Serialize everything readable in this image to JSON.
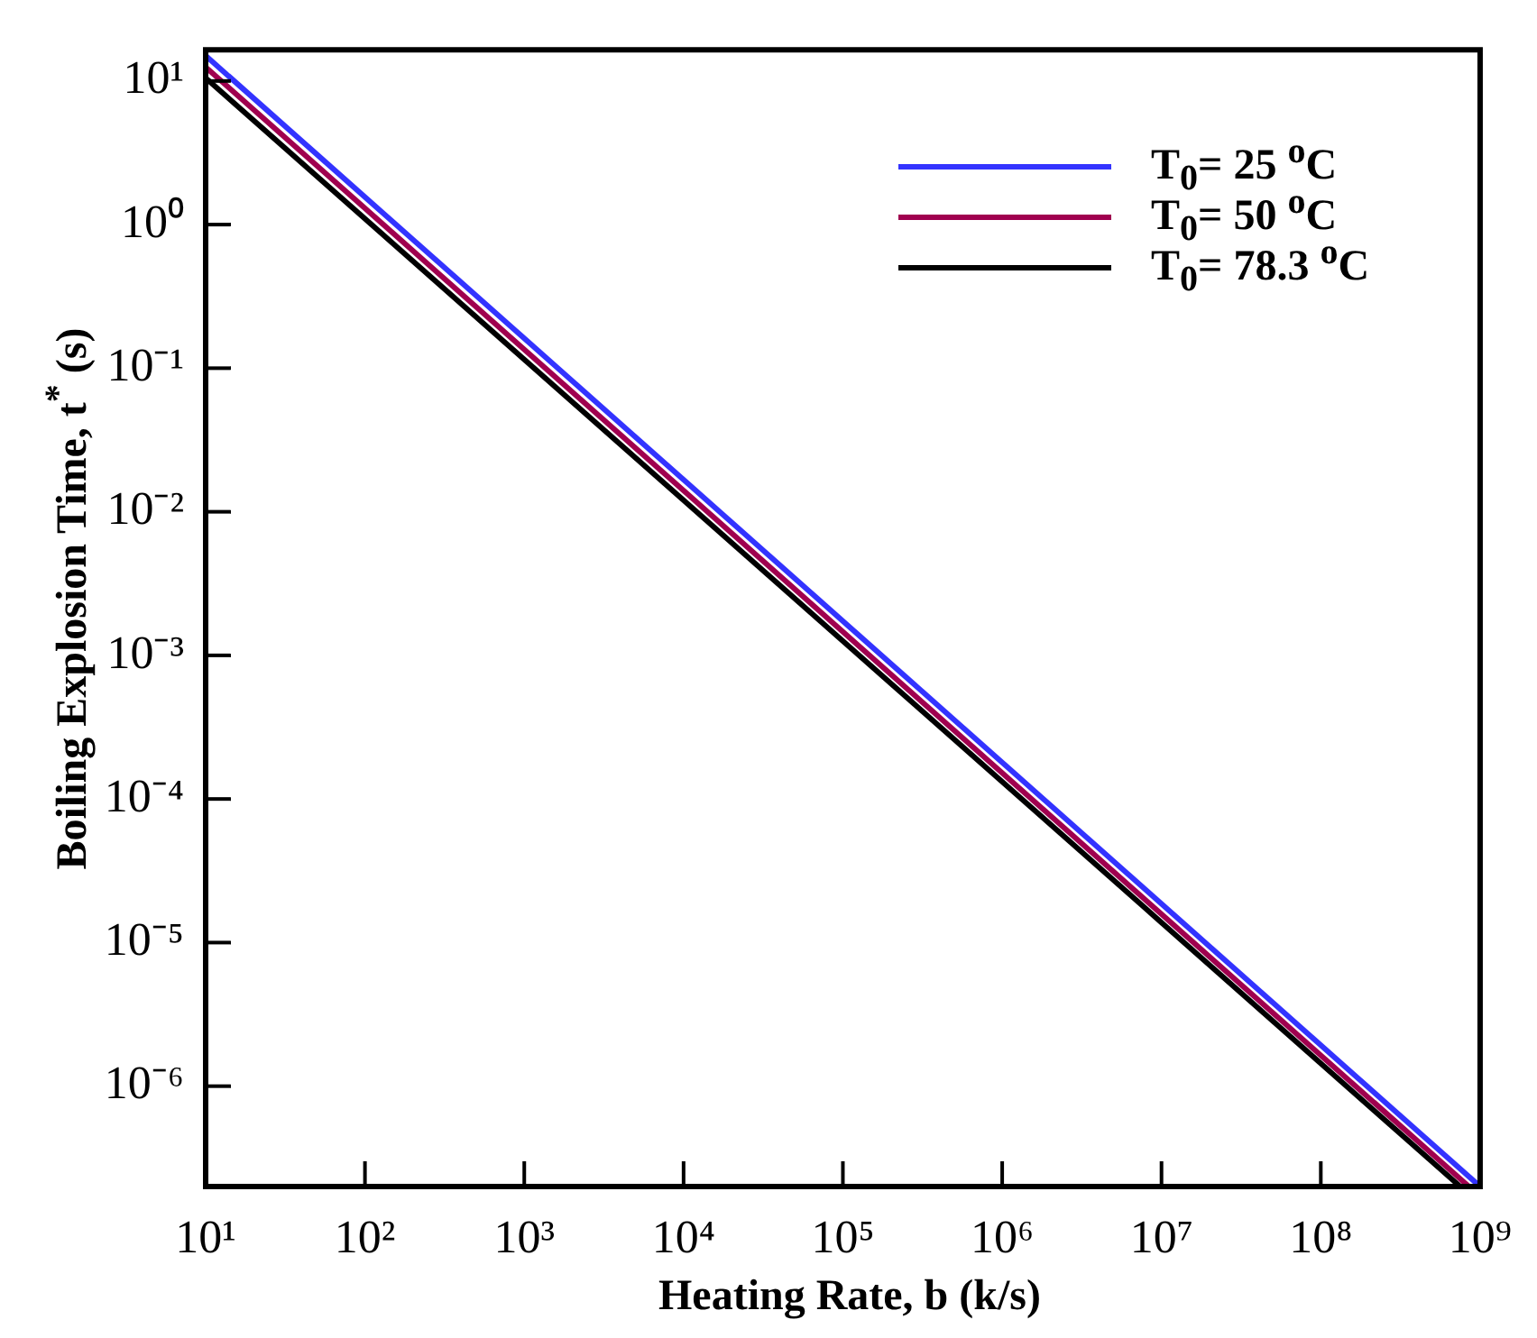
{
  "chart_data": {
    "type": "line",
    "xlabel": "Heating Rate, b (k/s)",
    "ylabel": "Boiling Explosion Time, t$^{*}$ (s)",
    "log": "xy",
    "xlim": [
      10,
      1000000000
    ],
    "ylim": [
      2e-07,
      16.5
    ],
    "xticks": [
      {
        "value": 10,
        "label": "10¹"
      },
      {
        "value": 100,
        "label": "10²"
      },
      {
        "value": 1000,
        "label": "10³"
      },
      {
        "value": 10000,
        "label": "10⁴"
      },
      {
        "value": 100000,
        "label": "10⁵"
      },
      {
        "value": 1000000,
        "label": "10⁶"
      },
      {
        "value": 10000000,
        "label": "10⁷"
      },
      {
        "value": 100000000,
        "label": "10⁸"
      },
      {
        "value": 1000000000,
        "label": "10⁹"
      }
    ],
    "yticks": [
      {
        "value": 1e-06,
        "label": "10⁻⁶"
      },
      {
        "value": 1e-05,
        "label": "10⁻⁵"
      },
      {
        "value": 0.0001,
        "label": "10⁻⁴"
      },
      {
        "value": 0.001,
        "label": "10⁻³"
      },
      {
        "value": 0.01,
        "label": "10⁻²"
      },
      {
        "value": 0.1,
        "label": "10⁻¹"
      },
      {
        "value": 1,
        "label": "10⁰"
      },
      {
        "value": 10,
        "label": "10¹"
      }
    ],
    "series": [
      {
        "name": "T$_{0}$= 25 $^{o}$C",
        "color": "#3333ff",
        "x": [
          10,
          1000000000
        ],
        "values": [
          15,
          2e-07
        ]
      },
      {
        "name": "T$_{0}$= 50 $^{o}$C",
        "color": "#a0004f",
        "x": [
          10,
          850000000
        ],
        "values": [
          12.5,
          2e-07
        ]
      },
      {
        "name": "T$_{0}$= 78.3 $^{o}$C",
        "color": "#000000",
        "x": [
          10,
          750000000
        ],
        "values": [
          10.5,
          2e-07
        ]
      }
    ],
    "legend": "top right",
    "grid": false,
    "marker": "none",
    "line_style": "solid"
  }
}
